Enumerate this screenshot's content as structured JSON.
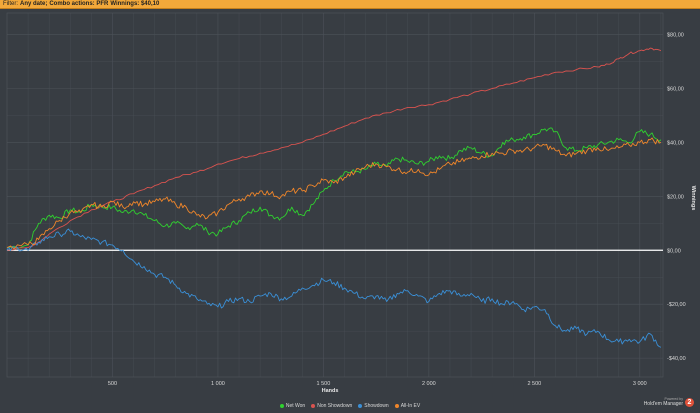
{
  "filter": {
    "label": "Filter:",
    "date": "Any date;",
    "actions": "Combo actions: PFR",
    "winnings": "Winnings: $40,10"
  },
  "branding": {
    "small": "Powered by",
    "name": "Hold'em Manager",
    "badge": "2"
  },
  "colors": {
    "background": "#383d43",
    "grid": "#4c5259",
    "zero_line": "#ffffff",
    "filter_bar": "#f2a83a"
  },
  "chart_data": {
    "type": "line",
    "xlabel": "Hands",
    "ylabel": "Winnings",
    "xlim": [
      0,
      3110
    ],
    "ylim": [
      -47,
      88
    ],
    "x_ticks": [
      500,
      1000,
      1500,
      2000,
      2500,
      3000
    ],
    "x_tick_labels": [
      "500",
      "1 000",
      "1 500",
      "2 000",
      "2 500",
      "3 000"
    ],
    "y_ticks": [
      -40,
      -20,
      0,
      20,
      40,
      60,
      80
    ],
    "y_tick_labels": [
      "-$40,00",
      "-$20,00",
      "$0,00",
      "$20,00",
      "$40,00",
      "$60,00",
      "$80,00"
    ],
    "grid": true,
    "legend_position": "bottom",
    "series": [
      {
        "name": "Net Won",
        "color": "#2fd12f",
        "x": [
          0,
          100,
          150,
          200,
          250,
          300,
          350,
          400,
          450,
          500,
          550,
          600,
          650,
          700,
          750,
          800,
          850,
          900,
          950,
          1000,
          1050,
          1100,
          1150,
          1200,
          1250,
          1300,
          1350,
          1400,
          1450,
          1500,
          1550,
          1600,
          1650,
          1700,
          1750,
          1800,
          1850,
          1900,
          1950,
          2000,
          2050,
          2100,
          2150,
          2200,
          2250,
          2300,
          2350,
          2400,
          2450,
          2500,
          2550,
          2600,
          2650,
          2700,
          2750,
          2800,
          2850,
          2900,
          2950,
          3000,
          3050,
          3100
        ],
        "y": [
          1,
          2,
          10,
          13,
          12,
          15,
          14,
          17,
          16,
          16,
          14,
          15,
          13,
          11,
          9,
          10,
          8,
          10,
          7,
          6,
          9,
          11,
          14,
          16,
          13,
          12,
          16,
          13,
          17,
          22,
          26,
          29,
          29,
          30,
          32,
          31,
          34,
          33,
          32,
          33,
          35,
          34,
          37,
          38,
          36,
          35,
          40,
          41,
          42,
          43,
          45,
          44,
          38,
          37,
          38,
          39,
          40,
          41,
          40,
          44,
          43,
          41
        ]
      },
      {
        "name": "Non Showdown",
        "color": "#d9534f",
        "x": [
          0,
          100,
          150,
          200,
          300,
          400,
          500,
          600,
          700,
          800,
          900,
          1000,
          1100,
          1200,
          1300,
          1400,
          1500,
          1600,
          1700,
          1800,
          1900,
          2000,
          2100,
          2200,
          2300,
          2400,
          2500,
          2600,
          2700,
          2800,
          2850,
          2900,
          2950,
          3000,
          3050,
          3100
        ],
        "y": [
          0,
          1,
          3,
          6,
          11,
          15,
          18,
          21,
          24,
          27,
          29,
          32,
          34,
          36,
          38,
          40,
          43,
          46,
          49,
          51,
          53,
          54,
          56,
          58,
          60,
          62,
          64,
          66,
          67,
          68,
          69,
          71,
          73,
          74,
          75,
          74
        ]
      },
      {
        "name": "Showdown",
        "color": "#3a8fd6",
        "x": [
          0,
          50,
          100,
          150,
          200,
          250,
          300,
          350,
          400,
          450,
          500,
          550,
          600,
          650,
          700,
          750,
          800,
          850,
          900,
          950,
          1000,
          1050,
          1100,
          1150,
          1200,
          1250,
          1300,
          1350,
          1400,
          1450,
          1500,
          1550,
          1600,
          1650,
          1700,
          1750,
          1800,
          1850,
          1900,
          1950,
          2000,
          2050,
          2100,
          2150,
          2200,
          2250,
          2300,
          2350,
          2400,
          2450,
          2500,
          2550,
          2600,
          2650,
          2700,
          2750,
          2800,
          2850,
          2900,
          2950,
          3000,
          3050,
          3100
        ],
        "y": [
          0,
          1,
          0,
          3,
          5,
          6,
          7,
          5,
          4,
          3,
          2,
          0,
          -4,
          -6,
          -9,
          -10,
          -13,
          -16,
          -18,
          -20,
          -21,
          -19,
          -18,
          -19,
          -17,
          -16,
          -18,
          -17,
          -14,
          -13,
          -11,
          -12,
          -14,
          -16,
          -18,
          -17,
          -19,
          -16,
          -15,
          -17,
          -19,
          -16,
          -15,
          -17,
          -16,
          -19,
          -18,
          -20,
          -19,
          -22,
          -21,
          -22,
          -28,
          -30,
          -29,
          -31,
          -30,
          -33,
          -34,
          -33,
          -34,
          -31,
          -36
        ]
      },
      {
        "name": "All-In EV",
        "color": "#f0862a",
        "x": [
          0,
          100,
          150,
          200,
          250,
          300,
          350,
          400,
          450,
          500,
          550,
          600,
          650,
          700,
          750,
          800,
          850,
          900,
          950,
          1000,
          1050,
          1100,
          1150,
          1200,
          1250,
          1300,
          1350,
          1400,
          1450,
          1500,
          1550,
          1600,
          1650,
          1700,
          1750,
          1800,
          1850,
          1900,
          1950,
          2000,
          2050,
          2100,
          2150,
          2200,
          2250,
          2300,
          2350,
          2400,
          2450,
          2500,
          2550,
          2600,
          2650,
          2700,
          2750,
          2800,
          2850,
          2900,
          2950,
          3000,
          3050,
          3100
        ],
        "y": [
          1,
          2,
          4,
          8,
          11,
          14,
          14,
          17,
          16,
          18,
          16,
          18,
          17,
          18,
          19,
          17,
          16,
          13,
          12,
          14,
          17,
          19,
          20,
          22,
          21,
          20,
          22,
          22,
          24,
          26,
          25,
          27,
          29,
          31,
          32,
          31,
          30,
          29,
          30,
          28,
          30,
          32,
          33,
          34,
          35,
          36,
          36,
          37,
          37,
          38,
          39,
          37,
          35,
          36,
          37,
          38,
          37,
          38,
          39,
          40,
          41,
          40
        ]
      }
    ]
  }
}
